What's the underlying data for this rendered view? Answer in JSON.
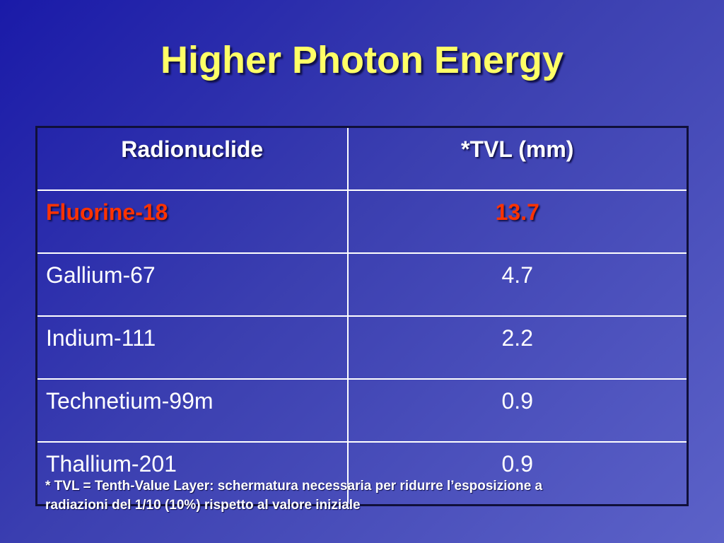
{
  "slide": {
    "title": "Higher Photon Energy"
  },
  "table": {
    "headers": [
      "Radionuclide",
      "*TVL (mm)"
    ],
    "rows": [
      {
        "name": "Fluorine-18",
        "value": "13.7"
      },
      {
        "name": "Gallium-67",
        "value": "4.7"
      },
      {
        "name": "Indium-111",
        "value": "2.2"
      },
      {
        "name": "Technetium-99m",
        "value": "0.9"
      },
      {
        "name": "Thallium-201",
        "value": "0.9"
      }
    ]
  },
  "footnote": {
    "line1": "* TVL = Tenth-Value Layer: schermatura necessaria per ridurre l’esposizione a",
    "line2": "radiazioni del 1/10 (10%) rispetto al valore iniziale"
  },
  "colors": {
    "title": "#ffff66",
    "highlight": "#ff3300",
    "background_start": "#1a1aa8",
    "background_end": "#5c62c8"
  }
}
